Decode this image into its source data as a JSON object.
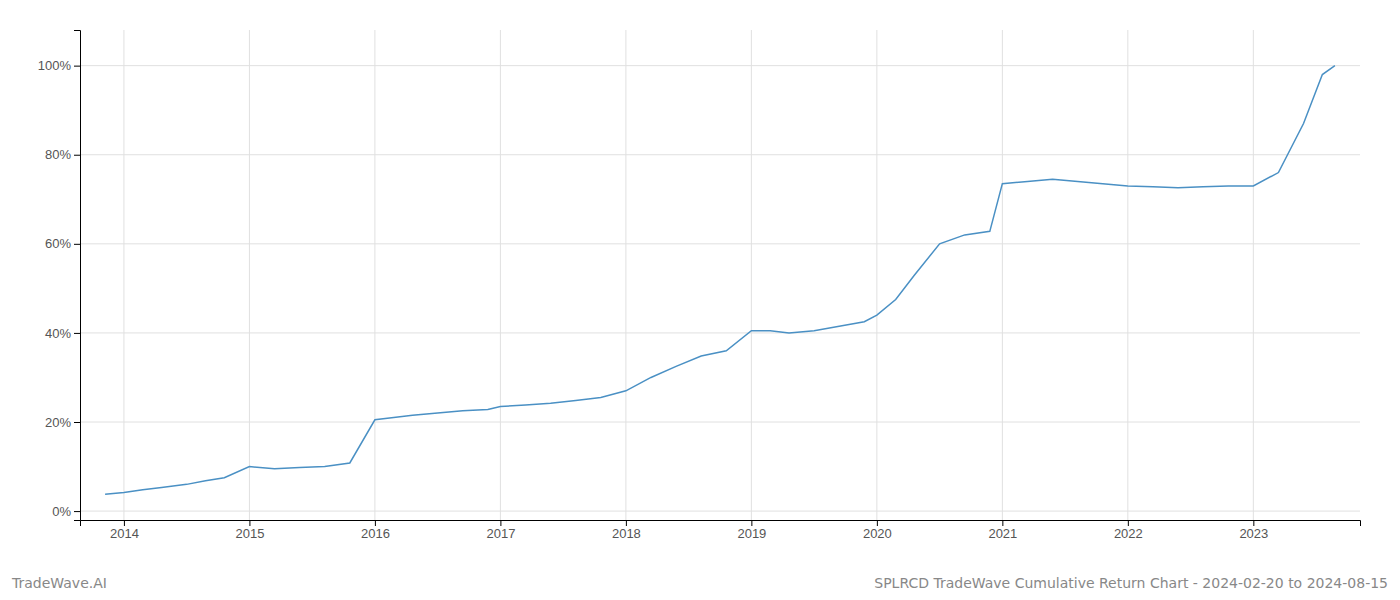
{
  "chart_data": {
    "type": "line",
    "title": "SPLRCD TradeWave Cumulative Return Chart - 2024-02-20 to 2024-08-15",
    "annotations": [
      "TradeWave.AI"
    ],
    "color": "#4a90c4",
    "grid": true,
    "x": [
      2013.85,
      2014.0,
      2014.15,
      2014.3,
      2014.5,
      2014.65,
      2014.8,
      2015.0,
      2015.2,
      2015.4,
      2015.6,
      2015.8,
      2016.0,
      2016.15,
      2016.3,
      2016.5,
      2016.7,
      2016.9,
      2017.0,
      2017.2,
      2017.4,
      2017.6,
      2017.8,
      2018.0,
      2018.2,
      2018.4,
      2018.6,
      2018.8,
      2019.0,
      2019.15,
      2019.3,
      2019.5,
      2019.7,
      2019.9,
      2020.0,
      2020.15,
      2020.3,
      2020.5,
      2020.7,
      2020.9,
      2021.0,
      2021.2,
      2021.4,
      2021.6,
      2021.8,
      2022.0,
      2022.2,
      2022.4,
      2022.6,
      2022.8,
      2023.0,
      2023.2,
      2023.4,
      2023.55,
      2023.65
    ],
    "values": [
      0.038,
      0.042,
      0.048,
      0.053,
      0.06,
      0.068,
      0.075,
      0.1,
      0.095,
      0.098,
      0.1,
      0.108,
      0.205,
      0.21,
      0.215,
      0.22,
      0.225,
      0.228,
      0.235,
      0.238,
      0.242,
      0.248,
      0.255,
      0.27,
      0.3,
      0.325,
      0.348,
      0.36,
      0.405,
      0.405,
      0.4,
      0.405,
      0.415,
      0.425,
      0.44,
      0.475,
      0.53,
      0.6,
      0.62,
      0.628,
      0.735,
      0.74,
      0.745,
      0.74,
      0.735,
      0.73,
      0.728,
      0.726,
      0.728,
      0.73,
      0.73,
      0.76,
      0.87,
      0.98,
      1.0
    ],
    "xlim": [
      2013.65,
      2023.85
    ],
    "ylim": [
      -0.02,
      1.08
    ],
    "xticks": [
      2014,
      2015,
      2016,
      2017,
      2018,
      2019,
      2020,
      2021,
      2022,
      2023
    ],
    "yticks": [
      {
        "value": 0.0,
        "label": "0%"
      },
      {
        "value": 0.2,
        "label": "20%"
      },
      {
        "value": 0.4,
        "label": "40%"
      },
      {
        "value": 0.6,
        "label": "60%"
      },
      {
        "value": 0.8,
        "label": "80%"
      },
      {
        "value": 1.0,
        "label": "100%"
      }
    ]
  }
}
